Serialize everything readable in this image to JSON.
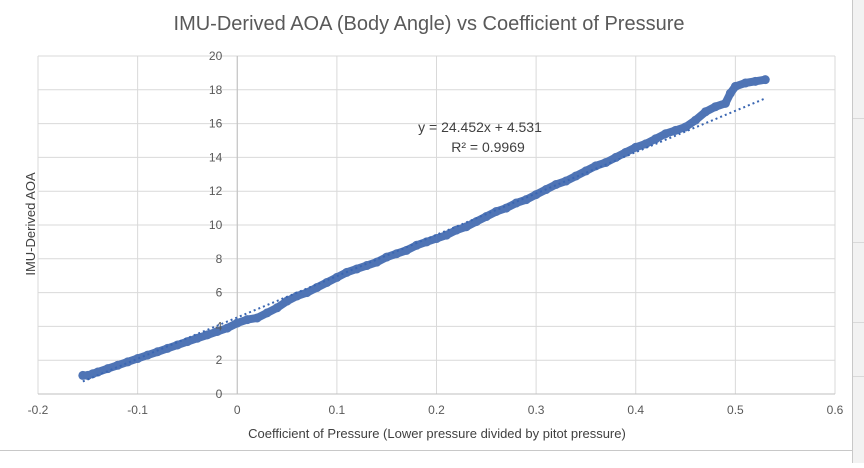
{
  "chart_data": {
    "type": "scatter",
    "title": "IMU-Derived AOA (Body Angle) vs Coefficient of Pressure",
    "xlabel": "Coefficient of Pressure (Lower pressure divided by pitot pressure)",
    "ylabel": "IMU-Derived AOA",
    "xlim": [
      -0.2,
      0.6
    ],
    "ylim": [
      0,
      20
    ],
    "x_ticks": [
      "-0.2",
      "-0.1",
      "0",
      "0.1",
      "0.2",
      "0.3",
      "0.4",
      "0.5",
      "0.6"
    ],
    "y_ticks": [
      "0",
      "2",
      "4",
      "6",
      "8",
      "10",
      "12",
      "14",
      "16",
      "18",
      "20"
    ],
    "grid": true,
    "legend": "none",
    "series": [
      {
        "color": "#4f74b5",
        "points": [
          [
            -0.155,
            1.1
          ],
          [
            -0.15,
            1.1
          ],
          [
            -0.145,
            1.2
          ],
          [
            -0.14,
            1.3
          ],
          [
            -0.13,
            1.5
          ],
          [
            -0.12,
            1.7
          ],
          [
            -0.11,
            1.9
          ],
          [
            -0.1,
            2.1
          ],
          [
            -0.09,
            2.3
          ],
          [
            -0.08,
            2.5
          ],
          [
            -0.07,
            2.7
          ],
          [
            -0.06,
            2.9
          ],
          [
            -0.05,
            3.1
          ],
          [
            -0.04,
            3.3
          ],
          [
            -0.03,
            3.5
          ],
          [
            -0.02,
            3.7
          ],
          [
            -0.01,
            3.9
          ],
          [
            0.0,
            4.2
          ],
          [
            0.01,
            4.4
          ],
          [
            0.02,
            4.5
          ],
          [
            0.03,
            4.8
          ],
          [
            0.04,
            5.1
          ],
          [
            0.05,
            5.5
          ],
          [
            0.06,
            5.8
          ],
          [
            0.07,
            6.0
          ],
          [
            0.08,
            6.3
          ],
          [
            0.09,
            6.6
          ],
          [
            0.1,
            6.9
          ],
          [
            0.11,
            7.2
          ],
          [
            0.12,
            7.4
          ],
          [
            0.13,
            7.6
          ],
          [
            0.14,
            7.8
          ],
          [
            0.15,
            8.1
          ],
          [
            0.16,
            8.3
          ],
          [
            0.17,
            8.5
          ],
          [
            0.18,
            8.8
          ],
          [
            0.19,
            9.0
          ],
          [
            0.2,
            9.2
          ],
          [
            0.21,
            9.4
          ],
          [
            0.22,
            9.7
          ],
          [
            0.23,
            9.9
          ],
          [
            0.24,
            10.2
          ],
          [
            0.25,
            10.5
          ],
          [
            0.26,
            10.8
          ],
          [
            0.27,
            11.0
          ],
          [
            0.28,
            11.3
          ],
          [
            0.29,
            11.5
          ],
          [
            0.3,
            11.8
          ],
          [
            0.31,
            12.1
          ],
          [
            0.32,
            12.4
          ],
          [
            0.33,
            12.6
          ],
          [
            0.34,
            12.9
          ],
          [
            0.35,
            13.2
          ],
          [
            0.36,
            13.5
          ],
          [
            0.37,
            13.7
          ],
          [
            0.38,
            14.0
          ],
          [
            0.39,
            14.3
          ],
          [
            0.4,
            14.6
          ],
          [
            0.41,
            14.8
          ],
          [
            0.42,
            15.1
          ],
          [
            0.43,
            15.4
          ],
          [
            0.44,
            15.6
          ],
          [
            0.45,
            15.8
          ],
          [
            0.46,
            16.2
          ],
          [
            0.47,
            16.7
          ],
          [
            0.48,
            17.0
          ],
          [
            0.49,
            17.2
          ],
          [
            0.495,
            17.8
          ],
          [
            0.5,
            18.2
          ],
          [
            0.51,
            18.4
          ],
          [
            0.52,
            18.5
          ],
          [
            0.53,
            18.6
          ]
        ]
      }
    ],
    "trendline": {
      "type": "linear",
      "slope": 24.452,
      "intercept": 4.531,
      "x_range": [
        -0.155,
        0.53
      ],
      "color": "#3a66b2",
      "equation_label": "y = 24.452x + 4.531",
      "r2_label": "R² = 0.9969"
    }
  }
}
